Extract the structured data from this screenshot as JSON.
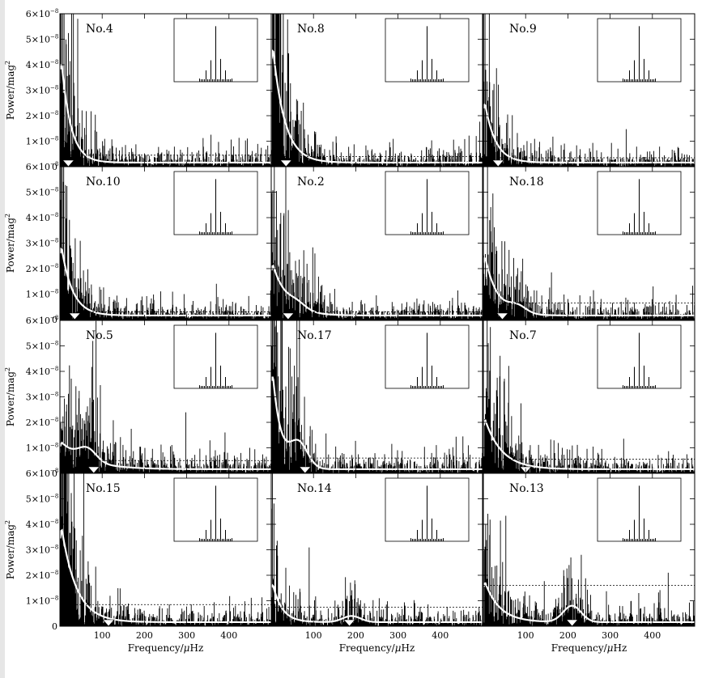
{
  "chart_data": {
    "type": "line",
    "layout": "4x3 grid of power spectra, each with an inset spectral window",
    "ylabel": "Power/mag²",
    "ylabel_base": "Power/mag",
    "ylabel_sup": "2",
    "xlabel": "Frequency/μHz",
    "xlabel_base": "Frequency/",
    "xlabel_mu": "μ",
    "xlabel_unit": "Hz",
    "xlim": [
      0,
      500
    ],
    "ylim": [
      0,
      6e-08
    ],
    "xticks": [
      100,
      200,
      300,
      400
    ],
    "xtick_labels": [
      "100",
      "200",
      "300",
      "400"
    ],
    "yticks": [
      0,
      1e-08,
      2e-08,
      3e-08,
      4e-08,
      5e-08,
      6e-08
    ],
    "ytick_mantissas": [
      "0",
      "1×10",
      "2×10",
      "3×10",
      "4×10",
      "5×10",
      "6×10"
    ],
    "ytick_exponent": "−8",
    "grid": false,
    "colors": {
      "spectrum": "#000000",
      "smoothed": "#ffffff",
      "threshold": "#000000",
      "marker": "#ffffff"
    },
    "panels": [
      {
        "name": "No.4",
        "row": 0,
        "col": 0,
        "smooth_peak": 5.9e-08,
        "decay": 22,
        "threshold": 4.5e-09,
        "bump_freq": 0,
        "bump_amp": 0,
        "numax_marker": 20
      },
      {
        "name": "No.8",
        "row": 0,
        "col": 1,
        "smooth_peak": 6.5e-08,
        "decay": 28,
        "threshold": 4e-09,
        "bump_freq": 0,
        "bump_amp": 0,
        "numax_marker": 35
      },
      {
        "name": "No.9",
        "row": 0,
        "col": 2,
        "smooth_peak": 3.4e-08,
        "decay": 25,
        "threshold": 3.5e-09,
        "bump_freq": 0,
        "bump_amp": 0,
        "numax_marker": 35
      },
      {
        "name": "No.10",
        "row": 1,
        "col": 0,
        "smooth_peak": 3.9e-08,
        "decay": 26,
        "threshold": 3e-09,
        "bump_freq": 0,
        "bump_amp": 0,
        "numax_marker": 35
      },
      {
        "name": "No.2",
        "row": 1,
        "col": 1,
        "smooth_peak": 2.8e-08,
        "decay": 35,
        "threshold": 3e-09,
        "bump_freq": 60,
        "bump_amp": 3e-09,
        "numax_marker": 40
      },
      {
        "name": "No.18",
        "row": 1,
        "col": 2,
        "smooth_peak": 3.3e-08,
        "decay": 30,
        "threshold": 6.5e-09,
        "bump_freq": 80,
        "bump_amp": 3.5e-09,
        "numax_marker": 45
      },
      {
        "name": "No.5",
        "row": 2,
        "col": 0,
        "smooth_peak": 1.4e-08,
        "decay": 60,
        "threshold": 5e-09,
        "bump_freq": 65,
        "bump_amp": 6e-09,
        "numax_marker": 80
      },
      {
        "name": "No.17",
        "row": 2,
        "col": 1,
        "smooth_peak": 5.6e-08,
        "decay": 20,
        "threshold": 6e-09,
        "bump_freq": 65,
        "bump_amp": 1.2e-08,
        "numax_marker": 80
      },
      {
        "name": "No.7",
        "row": 2,
        "col": 2,
        "smooth_peak": 2.7e-08,
        "decay": 40,
        "threshold": 5.5e-09,
        "bump_freq": 0,
        "bump_amp": 0,
        "numax_marker": 100
      },
      {
        "name": "No.15",
        "row": 3,
        "col": 0,
        "smooth_peak": 5.2e-08,
        "decay": 35,
        "threshold": 8.5e-09,
        "bump_freq": 0,
        "bump_amp": 0,
        "numax_marker": 115
      },
      {
        "name": "No.14",
        "row": 3,
        "col": 1,
        "smooth_peak": 2.2e-08,
        "decay": 22,
        "threshold": 7.5e-09,
        "bump_freq": 190,
        "bump_amp": 3e-09,
        "numax_marker": 185
      },
      {
        "name": "No.13",
        "row": 3,
        "col": 2,
        "smooth_peak": 2.2e-08,
        "decay": 35,
        "threshold": 1.6e-08,
        "bump_freq": 210,
        "bump_amp": 8e-09,
        "numax_marker": 210
      }
    ]
  }
}
